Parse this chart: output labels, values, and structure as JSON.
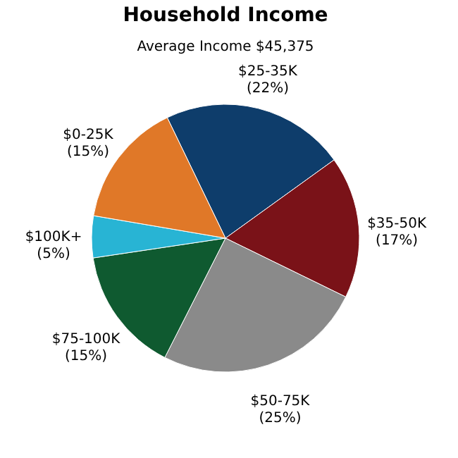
{
  "chart_data": {
    "type": "pie",
    "title": "Household Income",
    "subtitle": "Average Income  $45,375",
    "categories": [
      "$25-35K",
      "$35-50K",
      "$50-75K",
      "$75-100K",
      "$100K+",
      "$0-25K"
    ],
    "values": [
      22,
      17,
      25,
      15,
      5,
      15
    ],
    "colors": [
      "#0e3d6b",
      "#7a1218",
      "#8a8a8a",
      "#0f5a30",
      "#28b4d4",
      "#e07828"
    ],
    "value_labels": [
      "(22%)",
      "(17%)",
      "(25%)",
      "(15%)",
      "(5%)",
      "(15%)"
    ],
    "legend": false
  }
}
